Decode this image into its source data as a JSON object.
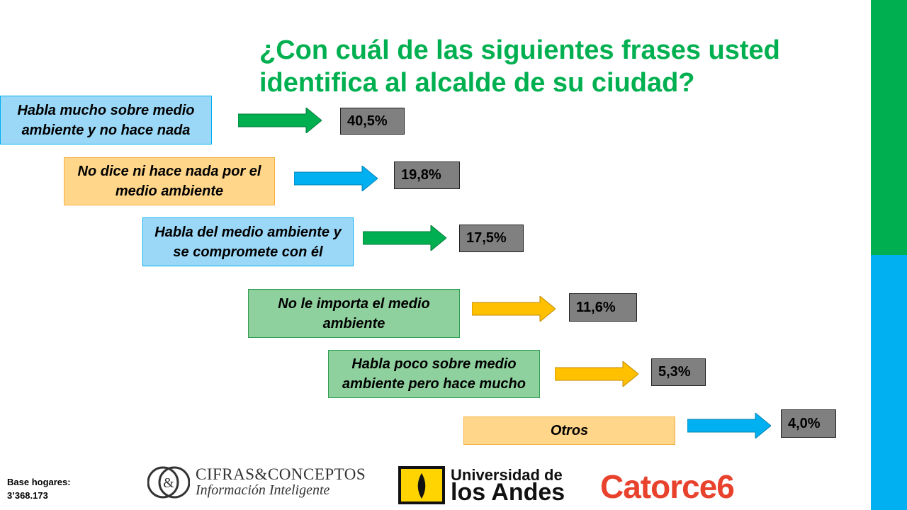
{
  "title": "¿Con cuál de las siguientes frases usted identifica al alcalde de su ciudad?",
  "items": [
    {
      "label": "Habla mucho sobre medio ambiente y no hace nada",
      "value": "40,5%",
      "box_color": "#9BD7F7",
      "arrow_color": "#00B050"
    },
    {
      "label": "No dice ni hace nada por el medio ambiente",
      "value": "19,8%",
      "box_color": "#FFD68A",
      "arrow_color": "#00B0F0"
    },
    {
      "label": "Habla del medio ambiente y se compromete con él",
      "value": "17,5%",
      "box_color": "#9BD7F7",
      "arrow_color": "#00B050"
    },
    {
      "label": "No le importa el medio ambiente",
      "value": "11,6%",
      "box_color": "#8FD19E",
      "arrow_color": "#FFC000"
    },
    {
      "label": "Habla poco sobre medio ambiente pero hace mucho",
      "value": "5,3%",
      "box_color": "#8FD19E",
      "arrow_color": "#FFC000"
    },
    {
      "label": "Otros",
      "value": "4,0%",
      "box_color": "#FFD68A",
      "arrow_color": "#00B0F0"
    }
  ],
  "base": {
    "label": "Base hogares:",
    "value": "3’368.173"
  },
  "logos": {
    "cifras_line1": "CIFRAS&CONCEPTOS",
    "cifras_line2": "Información Inteligente",
    "uniandes_line1": "Universidad de",
    "uniandes_line2": "los Andes",
    "catorce": "Catorce6"
  },
  "colors": {
    "accent_green": "#00B050",
    "accent_blue": "#00B0F0",
    "accent_orange": "#FFC000"
  }
}
